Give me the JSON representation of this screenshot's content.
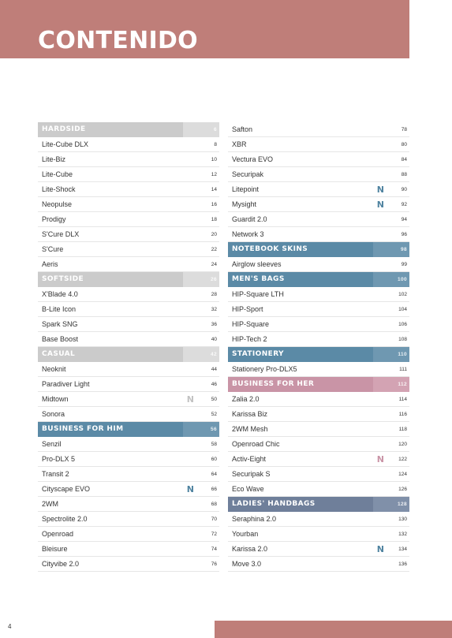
{
  "title": "CONTENIDO",
  "page_number": "4",
  "colors": {
    "brand": "#bf7e79",
    "section_grey": "#cbcbcb",
    "section_blue": "#5b8aa6",
    "section_pink": "#c994a6",
    "section_slate": "#6f7f9a",
    "new_badge_blue": "#4f83a0",
    "new_badge_grey": "#c2c2c2",
    "new_badge_pink": "#c994a6"
  },
  "new_badge_text": "N",
  "left_column": [
    {
      "type": "section",
      "style": "grey",
      "label": "HARDSIDE",
      "page": "6"
    },
    {
      "type": "item",
      "label": "Lite-Cube DLX",
      "page": "8"
    },
    {
      "type": "item",
      "label": "Lite-Biz",
      "page": "10"
    },
    {
      "type": "item",
      "label": "Lite-Cube",
      "page": "12"
    },
    {
      "type": "item",
      "label": "Lite-Shock",
      "page": "14"
    },
    {
      "type": "item",
      "label": "Neopulse",
      "page": "16"
    },
    {
      "type": "item",
      "label": "Prodigy",
      "page": "18"
    },
    {
      "type": "item",
      "label": "S'Cure DLX",
      "page": "20"
    },
    {
      "type": "item",
      "label": "S'Cure",
      "page": "22"
    },
    {
      "type": "item",
      "label": "Aeris",
      "page": "24"
    },
    {
      "type": "section",
      "style": "grey",
      "label": "SOFTSIDE",
      "page": "26"
    },
    {
      "type": "item",
      "label": "X'Blade 4.0",
      "page": "28"
    },
    {
      "type": "item",
      "label": "B-Lite Icon",
      "page": "32"
    },
    {
      "type": "item",
      "label": "Spark SNG",
      "page": "36"
    },
    {
      "type": "item",
      "label": "Base Boost",
      "page": "40"
    },
    {
      "type": "section",
      "style": "grey",
      "label": "CASUAL",
      "page": "42"
    },
    {
      "type": "item",
      "label": "Neoknit",
      "page": "44"
    },
    {
      "type": "item",
      "label": "Paradiver Light",
      "page": "46"
    },
    {
      "type": "item",
      "label": "Midtown",
      "page": "50",
      "new": "grey"
    },
    {
      "type": "item",
      "label": "Sonora",
      "page": "52"
    },
    {
      "type": "section",
      "style": "blue",
      "label": "BUSINESS FOR HIM",
      "page": "56"
    },
    {
      "type": "item",
      "label": "Senzil",
      "page": "58"
    },
    {
      "type": "item",
      "label": "Pro-DLX 5",
      "page": "60"
    },
    {
      "type": "item",
      "label": "Transit 2",
      "page": "64"
    },
    {
      "type": "item",
      "label": "Cityscape EVO",
      "page": "66",
      "new": "blue"
    },
    {
      "type": "item",
      "label": "2WM",
      "page": "68"
    },
    {
      "type": "item",
      "label": "Spectrolite 2.0",
      "page": "70"
    },
    {
      "type": "item",
      "label": "Openroad",
      "page": "72"
    },
    {
      "type": "item",
      "label": "Bleisure",
      "page": "74"
    },
    {
      "type": "item",
      "label": "Cityvibe 2.0",
      "page": "76"
    }
  ],
  "right_column": [
    {
      "type": "item",
      "label": "Safton",
      "page": "78"
    },
    {
      "type": "item",
      "label": "XBR",
      "page": "80"
    },
    {
      "type": "item",
      "label": "Vectura EVO",
      "page": "84"
    },
    {
      "type": "item",
      "label": "Securipak",
      "page": "88"
    },
    {
      "type": "item",
      "label": "Litepoint",
      "page": "90",
      "new": "blue"
    },
    {
      "type": "item",
      "label": "Mysight",
      "page": "92",
      "new": "blue"
    },
    {
      "type": "item",
      "label": "Guardit 2.0",
      "page": "94"
    },
    {
      "type": "item",
      "label": "Network 3",
      "page": "96"
    },
    {
      "type": "section",
      "style": "blue",
      "label": "NOTEBOOK SKINS",
      "page": "98"
    },
    {
      "type": "item",
      "label": "Airglow sleeves",
      "page": "99"
    },
    {
      "type": "section",
      "style": "blue",
      "label": "MEN'S BAGS",
      "page": "100"
    },
    {
      "type": "item",
      "label": "HIP-Square LTH",
      "page": "102"
    },
    {
      "type": "item",
      "label": "HIP-Sport",
      "page": "104"
    },
    {
      "type": "item",
      "label": "HIP-Square",
      "page": "106"
    },
    {
      "type": "item",
      "label": "HIP-Tech 2",
      "page": "108"
    },
    {
      "type": "section",
      "style": "blue",
      "label": "STATIONERY",
      "page": "110"
    },
    {
      "type": "item",
      "label": "Stationery Pro-DLX5",
      "page": "111"
    },
    {
      "type": "section",
      "style": "pink",
      "label": "BUSINESS FOR HER",
      "page": "112"
    },
    {
      "type": "item",
      "label": "Zalia 2.0",
      "page": "114"
    },
    {
      "type": "item",
      "label": "Karissa Biz",
      "page": "116"
    },
    {
      "type": "item",
      "label": "2WM Mesh",
      "page": "118"
    },
    {
      "type": "item",
      "label": "Openroad Chic",
      "page": "120"
    },
    {
      "type": "item",
      "label": "Activ-Eight",
      "page": "122",
      "new": "pink"
    },
    {
      "type": "item",
      "label": "Securipak S",
      "page": "124"
    },
    {
      "type": "item",
      "label": "Eco Wave",
      "page": "126"
    },
    {
      "type": "section",
      "style": "slate",
      "label": "LADIES' HANDBAGS",
      "page": "128"
    },
    {
      "type": "item",
      "label": "Seraphina 2.0",
      "page": "130"
    },
    {
      "type": "item",
      "label": "Yourban",
      "page": "132"
    },
    {
      "type": "item",
      "label": "Karissa 2.0",
      "page": "134",
      "new": "blue"
    },
    {
      "type": "item",
      "label": "Move 3.0",
      "page": "136"
    }
  ]
}
